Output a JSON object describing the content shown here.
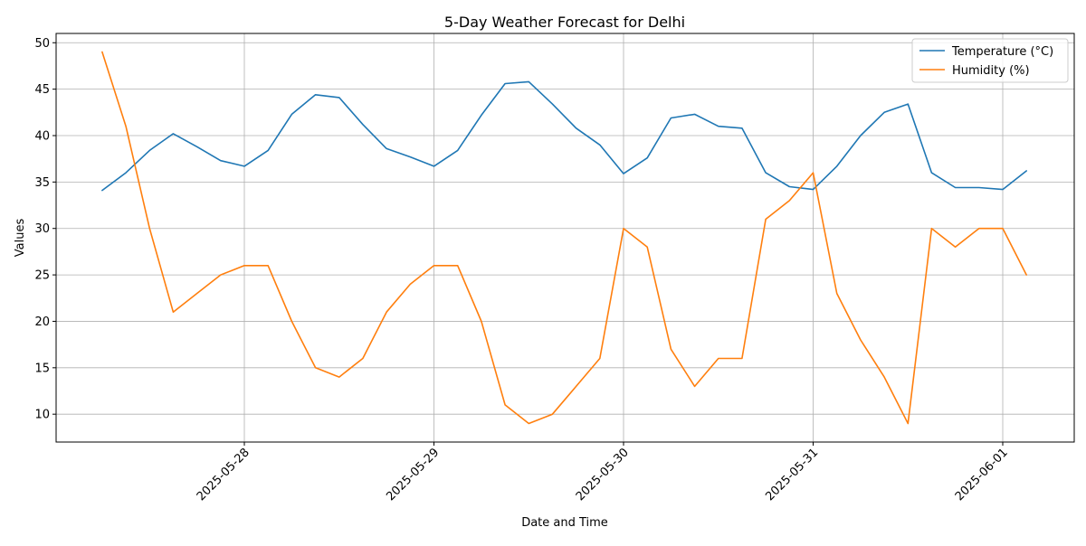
{
  "chart_data": {
    "type": "line",
    "title": "5-Day Weather Forecast for Delhi",
    "xlabel": "Date and Time",
    "ylabel": "Values",
    "x": [
      "2025-05-27 06:00",
      "2025-05-27 09:00",
      "2025-05-27 12:00",
      "2025-05-27 15:00",
      "2025-05-27 18:00",
      "2025-05-27 21:00",
      "2025-05-28 00:00",
      "2025-05-28 03:00",
      "2025-05-28 06:00",
      "2025-05-28 09:00",
      "2025-05-28 12:00",
      "2025-05-28 15:00",
      "2025-05-28 18:00",
      "2025-05-28 21:00",
      "2025-05-29 00:00",
      "2025-05-29 03:00",
      "2025-05-29 06:00",
      "2025-05-29 09:00",
      "2025-05-29 12:00",
      "2025-05-29 15:00",
      "2025-05-29 18:00",
      "2025-05-29 21:00",
      "2025-05-30 00:00",
      "2025-05-30 03:00",
      "2025-05-30 06:00",
      "2025-05-30 09:00",
      "2025-05-30 12:00",
      "2025-05-30 15:00",
      "2025-05-30 18:00",
      "2025-05-30 21:00",
      "2025-05-31 00:00",
      "2025-05-31 03:00",
      "2025-05-31 06:00",
      "2025-05-31 09:00",
      "2025-05-31 12:00",
      "2025-05-31 15:00",
      "2025-05-31 18:00",
      "2025-05-31 21:00",
      "2025-06-01 00:00",
      "2025-06-01 03:00"
    ],
    "x_ticks": [
      "2025-05-28",
      "2025-05-29",
      "2025-05-30",
      "2025-05-31",
      "2025-06-01"
    ],
    "ylim": [
      7,
      51
    ],
    "y_ticks": [
      10,
      15,
      20,
      25,
      30,
      35,
      40,
      45,
      50
    ],
    "grid": true,
    "legend_position": "top-right",
    "series": [
      {
        "name": "Temperature (°C)",
        "color": "#1f77b4",
        "values": [
          34.1,
          36.0,
          38.4,
          40.2,
          38.8,
          37.3,
          36.7,
          38.4,
          42.3,
          44.4,
          44.1,
          41.2,
          38.6,
          37.7,
          36.7,
          38.4,
          42.2,
          45.6,
          45.8,
          43.4,
          40.8,
          39.0,
          35.9,
          37.6,
          41.9,
          42.3,
          41.0,
          40.8,
          36.0,
          34.5,
          34.2,
          36.7,
          40.0,
          42.5,
          43.4,
          36.0,
          34.4,
          34.4,
          34.2,
          36.2
        ]
      },
      {
        "name": "Humidity (%)",
        "color": "#ff7f0e",
        "values": [
          49,
          41,
          30,
          21,
          23,
          25,
          26,
          26,
          20,
          15,
          14,
          16,
          21,
          24,
          26,
          26,
          20,
          11,
          9,
          10,
          13,
          16,
          30,
          28,
          17,
          13,
          16,
          16,
          31,
          33,
          36,
          23,
          18,
          14,
          9,
          30,
          28,
          30,
          30,
          25
        ]
      }
    ]
  }
}
